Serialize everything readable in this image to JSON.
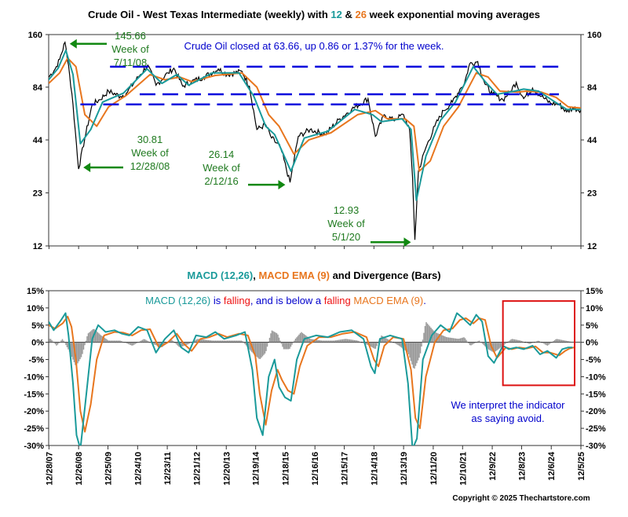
{
  "chart_data": [
    {
      "type": "line",
      "scale": "log",
      "title_parts": [
        {
          "text": "Crude Oil - West Texas Intermediate (weekly) with ",
          "color": "#000000"
        },
        {
          "text": "12",
          "color": "#1a9a9a"
        },
        {
          "text": " & ",
          "color": "#000000"
        },
        {
          "text": "26",
          "color": "#e8761e"
        },
        {
          "text": " week exponential moving averages",
          "color": "#000000"
        }
      ],
      "yticks": [
        160,
        84,
        44,
        23,
        12
      ],
      "ylim": [
        12,
        160
      ],
      "x_range": [
        2007.98,
        2025.93
      ],
      "series": [
        {
          "name": "Crude Oil weekly close",
          "color": "#000000",
          "x": [
            2007.98,
            2008.2,
            2008.35,
            2008.53,
            2008.65,
            2008.8,
            2008.99,
            2009.2,
            2009.45,
            2009.7,
            2010.0,
            2010.4,
            2010.6,
            2011.0,
            2011.32,
            2011.6,
            2012.0,
            2012.2,
            2012.5,
            2012.8,
            2013.2,
            2013.7,
            2014.0,
            2014.5,
            2014.75,
            2015.0,
            2015.3,
            2015.5,
            2015.8,
            2016.12,
            2016.4,
            2016.8,
            2017.3,
            2017.8,
            2018.2,
            2018.75,
            2019.0,
            2019.3,
            2019.6,
            2019.95,
            2020.15,
            2020.25,
            2020.33,
            2020.45,
            2020.7,
            2021.0,
            2021.3,
            2021.6,
            2021.85,
            2022.0,
            2022.18,
            2022.45,
            2022.7,
            2022.95,
            2023.3,
            2023.55,
            2023.75,
            2024.0,
            2024.3,
            2024.6,
            2024.9,
            2025.2,
            2025.45,
            2025.65,
            2025.93
          ],
          "values": [
            95,
            105,
            118,
            145.66,
            110,
            68,
            30.81,
            45,
            68,
            72,
            80,
            75,
            78,
            95,
            110,
            86,
            100,
            106,
            85,
            90,
            95,
            105,
            98,
            102,
            85,
            50,
            53,
            45,
            40,
            26.14,
            46,
            50,
            47,
            57,
            64,
            73,
            46,
            60,
            56,
            60,
            50,
            28,
            12.93,
            30,
            40,
            52,
            63,
            70,
            82,
            88,
            112,
            115,
            87,
            77,
            72,
            80,
            89,
            73,
            83,
            75,
            69,
            68,
            62,
            65,
            63.66
          ]
        },
        {
          "name": "12 week EMA",
          "color": "#1a9a9a",
          "x": [
            2007.98,
            2008.3,
            2008.56,
            2008.8,
            2009.05,
            2009.4,
            2009.8,
            2010.5,
            2011.3,
            2011.8,
            2012.3,
            2012.7,
            2013.5,
            2014.4,
            2014.9,
            2015.3,
            2015.6,
            2016.15,
            2016.6,
            2017.4,
            2018.3,
            2018.9,
            2019.2,
            2019.9,
            2020.2,
            2020.38,
            2020.7,
            2021.2,
            2021.7,
            2022.3,
            2022.7,
            2023.1,
            2023.7,
            2024.0,
            2024.5,
            2025.0,
            2025.45,
            2025.93
          ],
          "values": [
            92,
            106,
            132,
            98,
            42,
            50,
            70,
            78,
            105,
            88,
            98,
            86,
            100,
            100,
            75,
            52,
            47,
            30,
            45,
            49,
            64,
            60,
            55,
            57,
            50,
            21,
            36,
            56,
            70,
            108,
            90,
            77,
            80,
            82,
            80,
            71,
            64,
            64
          ]
        },
        {
          "name": "26 week EMA",
          "color": "#e8761e",
          "x": [
            2007.98,
            2008.35,
            2008.62,
            2008.9,
            2009.2,
            2009.6,
            2010.0,
            2010.6,
            2011.4,
            2011.9,
            2012.4,
            2012.8,
            2013.6,
            2014.5,
            2015.0,
            2015.4,
            2015.75,
            2016.25,
            2016.75,
            2017.5,
            2018.4,
            2019.0,
            2019.4,
            2020.0,
            2020.3,
            2020.48,
            2020.85,
            2021.3,
            2021.8,
            2022.4,
            2022.8,
            2023.2,
            2023.8,
            2024.1,
            2024.6,
            2025.1,
            2025.5,
            2025.93
          ],
          "values": [
            88,
            100,
            120,
            108,
            60,
            52,
            66,
            76,
            98,
            92,
            95,
            90,
            97,
            100,
            84,
            60,
            52,
            37,
            44,
            48,
            60,
            63,
            57,
            57,
            52,
            30,
            34,
            52,
            66,
            100,
            95,
            80,
            79,
            80,
            79,
            74,
            66,
            65
          ]
        }
      ],
      "resistance_lines": [
        {
          "level": 108,
          "x_start": 2010.05,
          "x_end": 2025.93
        },
        {
          "level": 77,
          "x_start": 2011.05,
          "x_end": 2025.93
        },
        {
          "level": 68,
          "x_start": 2009.05,
          "x_end": 2025.93
        }
      ],
      "headline": "Crude Oil closed at 63.66, up 0.86 or 1.37% for the week.",
      "annotations": [
        {
          "lines": [
            "145.66",
            "Week of",
            "7/11/08"
          ],
          "price": 145.66,
          "x": 2008.53
        },
        {
          "lines": [
            "30.81",
            "Week of",
            "12/28/08"
          ],
          "price": 30.81,
          "x": 2008.99
        },
        {
          "lines": [
            "26.14",
            "Week of",
            "2/12/16"
          ],
          "price": 26.14,
          "x": 2016.12
        },
        {
          "lines": [
            "12.93",
            "Week of",
            "5/1/20"
          ],
          "price": 12.93,
          "x": 2020.33
        }
      ]
    },
    {
      "type": "line",
      "title_parts": [
        {
          "text": "MACD (12,26)",
          "color": "#1a9a9a"
        },
        {
          "text": ", ",
          "color": "#000000"
        },
        {
          "text": "MACD EMA (9)",
          "color": "#e8761e"
        },
        {
          "text": " and Divergence (Bars)",
          "color": "#000000"
        }
      ],
      "ylim": [
        -30,
        15
      ],
      "ytick_values": [
        15,
        10,
        5,
        0,
        -5,
        -10,
        -15,
        -20,
        -25,
        -30
      ],
      "ytick_labels": [
        "15%",
        "10%",
        "5%",
        "0%",
        "-5%",
        "-10%",
        "-15%",
        "-20%",
        "-25%",
        "-30%"
      ],
      "status_parts": [
        {
          "text": "MACD (12,26)",
          "color": "#1a9a9a"
        },
        {
          "text": " is ",
          "color": "#0000cc"
        },
        {
          "text": "falling",
          "color": "#ee1111"
        },
        {
          "text": ", and is below a ",
          "color": "#0000cc"
        },
        {
          "text": "falling",
          "color": "#ee1111"
        },
        {
          "text": " ",
          "color": "#0000cc"
        },
        {
          "text": "MACD EMA (9)",
          "color": "#e8761e"
        },
        {
          "text": ".",
          "color": "#0000cc"
        }
      ],
      "interpretation": [
        "We interpret the indicator",
        "as saying avoid."
      ],
      "highlight_box": {
        "x_start": 2023.3,
        "x_end": 2025.93,
        "y_top": 12,
        "y_bottom": -12.5
      },
      "series": [
        {
          "name": "MACD (12,26)",
          "color": "#1a9a9a",
          "x": [
            2007.98,
            2008.15,
            2008.4,
            2008.55,
            2008.65,
            2008.8,
            2008.92,
            2009.05,
            2009.25,
            2009.45,
            2009.65,
            2009.9,
            2010.2,
            2010.45,
            2010.7,
            2011.0,
            2011.3,
            2011.6,
            2011.9,
            2012.2,
            2012.45,
            2012.7,
            2012.95,
            2013.3,
            2013.6,
            2013.9,
            2014.3,
            2014.6,
            2014.85,
            2015.0,
            2015.2,
            2015.4,
            2015.6,
            2015.75,
            2015.95,
            2016.15,
            2016.35,
            2016.6,
            2017.0,
            2017.4,
            2017.8,
            2018.2,
            2018.6,
            2018.85,
            2018.98,
            2019.15,
            2019.5,
            2019.9,
            2020.1,
            2020.25,
            2020.4,
            2020.6,
            2020.9,
            2021.2,
            2021.5,
            2021.75,
            2021.95,
            2022.2,
            2022.4,
            2022.6,
            2022.8,
            2023.0,
            2023.3,
            2023.5,
            2023.75,
            2024.0,
            2024.3,
            2024.55,
            2024.8,
            2025.1,
            2025.3,
            2025.5,
            2025.65
          ],
          "values": [
            6,
            3.5,
            6.5,
            8.5,
            2,
            -12,
            -27,
            -31,
            -15,
            1,
            5,
            3,
            3.5,
            2.5,
            2,
            4.5,
            3.5,
            -3,
            1,
            3.5,
            -1.5,
            -3,
            2,
            1.5,
            3,
            1,
            2,
            3,
            -8,
            -22,
            -27,
            -10,
            -5,
            -13,
            -16,
            -17,
            -5,
            1,
            2,
            1.5,
            3,
            3.5,
            1,
            -7,
            -9,
            1,
            2,
            1,
            -12,
            -31,
            -28,
            -5,
            2,
            5,
            3,
            8.5,
            7,
            5,
            8,
            6,
            -4,
            -6,
            -1,
            -2,
            -1.5,
            -2,
            -1,
            -3.5,
            -2.5,
            -4.5,
            -2,
            -1.5,
            -1.5
          ]
        },
        {
          "name": "MACD EMA (9)",
          "color": "#e8761e",
          "x": [
            2007.98,
            2008.2,
            2008.45,
            2008.62,
            2008.75,
            2008.9,
            2009.05,
            2009.2,
            2009.4,
            2009.6,
            2009.85,
            2010.2,
            2010.5,
            2010.8,
            2011.1,
            2011.4,
            2011.7,
            2012.0,
            2012.3,
            2012.55,
            2012.8,
            2013.1,
            2013.4,
            2013.7,
            2014.0,
            2014.4,
            2014.7,
            2014.95,
            2015.1,
            2015.3,
            2015.5,
            2015.7,
            2015.85,
            2016.05,
            2016.25,
            2016.45,
            2016.7,
            2017.1,
            2017.5,
            2017.9,
            2018.3,
            2018.7,
            2018.95,
            2019.1,
            2019.3,
            2019.6,
            2019.95,
            2020.2,
            2020.35,
            2020.5,
            2020.7,
            2021.0,
            2021.3,
            2021.6,
            2021.85,
            2022.05,
            2022.3,
            2022.5,
            2022.7,
            2022.9,
            2023.1,
            2023.4,
            2023.6,
            2023.85,
            2024.1,
            2024.4,
            2024.65,
            2024.9,
            2025.2,
            2025.4,
            2025.55,
            2025.7
          ],
          "values": [
            5,
            4,
            5.5,
            7.5,
            4.5,
            -5,
            -20,
            -26,
            -18,
            -5,
            2,
            3,
            2.8,
            2,
            3.5,
            3.8,
            -1.5,
            0,
            2.5,
            -0.5,
            -2.5,
            1,
            1.5,
            2.5,
            1.5,
            2.5,
            2,
            -4,
            -15,
            -24,
            -14,
            -8,
            -11,
            -14,
            -15,
            -7,
            -1,
            1.5,
            1.5,
            2.5,
            3,
            1.5,
            -5,
            -7,
            -1,
            1.5,
            1,
            -8,
            -22,
            -25,
            -10,
            0,
            3.5,
            4,
            6.5,
            7,
            5.5,
            7,
            6.5,
            -1,
            -4.5,
            -1.5,
            -2,
            -1.5,
            -1.8,
            -1.2,
            -3,
            -3,
            -3.8,
            -2.5,
            -1.8,
            -1.5
          ]
        },
        {
          "name": "Divergence",
          "color": "#999999",
          "x": [
            2008.05,
            2008.25,
            2008.45,
            2008.7,
            2008.9,
            2009.1,
            2009.3,
            2009.5,
            2009.75,
            2010.0,
            2010.4,
            2010.8,
            2011.2,
            2011.5,
            2011.8,
            2012.1,
            2012.4,
            2012.7,
            2013.0,
            2013.5,
            2014.0,
            2014.5,
            2014.85,
            2015.1,
            2015.3,
            2015.5,
            2015.7,
            2015.9,
            2016.1,
            2016.3,
            2016.5,
            2016.8,
            2017.2,
            2017.6,
            2018.0,
            2018.4,
            2018.8,
            2019.0,
            2019.2,
            2019.5,
            2019.8,
            2020.1,
            2020.3,
            2020.5,
            2020.7,
            2021.0,
            2021.4,
            2021.8,
            2022.0,
            2022.2,
            2022.5,
            2022.8,
            2023.0,
            2023.3,
            2023.6,
            2023.9,
            2024.2,
            2024.5,
            2024.8,
            2025.1,
            2025.4,
            2025.6
          ],
          "values": [
            1,
            -1,
            1,
            -3,
            -7,
            -4,
            2.5,
            4,
            2,
            0.5,
            0.5,
            -1,
            1,
            -0.5,
            -1.5,
            1,
            -1.5,
            -0.5,
            1,
            0.5,
            0.5,
            0.5,
            -3,
            -5,
            -3,
            3.5,
            2.5,
            -2,
            -2,
            1,
            3,
            1,
            0.5,
            0.5,
            1,
            0.5,
            -1,
            -2,
            2,
            0.5,
            -1,
            -3,
            -8,
            -4,
            6,
            3,
            1.5,
            1,
            1.5,
            -1,
            0.5,
            -2,
            -3,
            -1,
            1,
            0.5,
            -0.5,
            0.5,
            -1,
            1,
            0.5,
            0.2
          ]
        }
      ]
    }
  ],
  "x_axis": {
    "ticks": [
      {
        "label": "12/28/07",
        "x": 2007.99
      },
      {
        "label": "12/26/08",
        "x": 2008.99
      },
      {
        "label": "12/25/09",
        "x": 2009.98
      },
      {
        "label": "12/24/10",
        "x": 2010.98
      },
      {
        "label": "12/23/11",
        "x": 2011.98
      },
      {
        "label": "12/21/12",
        "x": 2012.97
      },
      {
        "label": "12/20/13",
        "x": 2013.97
      },
      {
        "label": "12/19/14",
        "x": 2014.96
      },
      {
        "label": "12/18/15",
        "x": 2015.96
      },
      {
        "label": "12/16/16",
        "x": 2016.96
      },
      {
        "label": "12/15/17",
        "x": 2017.95
      },
      {
        "label": "12/14/18",
        "x": 2018.95
      },
      {
        "label": "12/13/19",
        "x": 2019.95
      },
      {
        "label": "12/11/20",
        "x": 2020.95
      },
      {
        "label": "12/10/21",
        "x": 2021.94
      },
      {
        "label": "12/9/22",
        "x": 2022.94
      },
      {
        "label": "12/8/23",
        "x": 2023.93
      },
      {
        "label": "12/6/24",
        "x": 2024.93
      },
      {
        "label": "12/5/25",
        "x": 2025.93
      }
    ]
  },
  "copyright": "Copyright © 2025 Thechartstore.com",
  "colors": {
    "price": "#000000",
    "ema12": "#1a9a9a",
    "ema26": "#e8761e",
    "resistance": "#0000dd",
    "annotation": "#1f7a1f",
    "arrow": "#118811",
    "headline": "#0000cc",
    "highlight_box": "#dd1111",
    "divergence": "#999999"
  }
}
